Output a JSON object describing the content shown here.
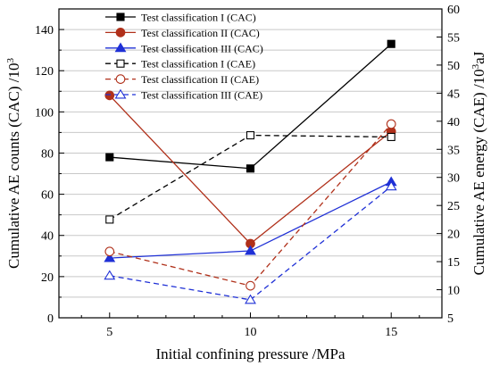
{
  "chart_data": {
    "type": "line",
    "x": [
      5,
      10,
      15
    ],
    "xlabel": "Initial confining pressure /MPa",
    "ylabel_left": "Cumulative AE counts (CAC) /10",
    "ylabel_left_sup": "3",
    "ylabel_right_pre": "Cumulative AE energy (CAE) /10",
    "ylabel_right_sup": "3",
    "ylabel_right_post": "aJ",
    "xlim": [
      3.2,
      16.8
    ],
    "ylim_left": [
      0,
      150
    ],
    "ylim_right": [
      5,
      60
    ],
    "xticks": [
      5,
      10,
      15
    ],
    "yticks_left": [
      0,
      20,
      40,
      60,
      80,
      100,
      120,
      140
    ],
    "yticks_right": [
      5,
      10,
      15,
      20,
      25,
      30,
      35,
      40,
      45,
      50,
      55,
      60
    ],
    "grid": "horizontal",
    "legend_position": "top-left",
    "series": [
      {
        "name": "Test classification I (CAC)",
        "axis": "left",
        "color": "#000000",
        "dash": "solid",
        "marker": "square",
        "filled": true,
        "values": [
          78,
          72.5,
          133
        ]
      },
      {
        "name": "Test classification II (CAC)",
        "axis": "left",
        "color": "#b0301a",
        "dash": "solid",
        "marker": "circle",
        "filled": true,
        "values": [
          108,
          36,
          90.5
        ]
      },
      {
        "name": "Test classification III (CAC)",
        "axis": "left",
        "color": "#1f30d6",
        "dash": "solid",
        "marker": "triangle",
        "filled": true,
        "values": [
          29,
          32.5,
          66
        ]
      },
      {
        "name": "Test classification I (CAE)",
        "axis": "right",
        "color": "#000000",
        "dash": "dashed",
        "marker": "square",
        "filled": false,
        "values": [
          22.5,
          37.5,
          37.2
        ]
      },
      {
        "name": "Test classification II (CAE)",
        "axis": "right",
        "color": "#b0301a",
        "dash": "dashed",
        "marker": "circle",
        "filled": false,
        "values": [
          16.8,
          10.7,
          39.5
        ]
      },
      {
        "name": "Test classification III (CAE)",
        "axis": "right",
        "color": "#1f30d6",
        "dash": "dashed",
        "marker": "triangle",
        "filled": false,
        "values": [
          12.5,
          8.2,
          28.4
        ]
      }
    ]
  }
}
